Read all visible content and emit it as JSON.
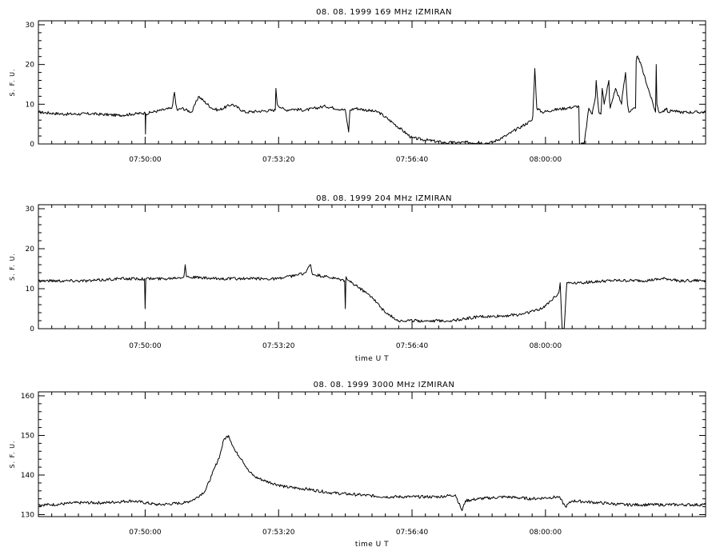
{
  "chart_data": [
    {
      "type": "line",
      "title": "08. 08. 1999    169 MHz    IZMIRAN",
      "ylabel": "S. F. U.",
      "xlabel": "",
      "x_range_seconds_of_day": [
        28040,
        29040
      ],
      "x_ticks": [
        28200,
        28400,
        28600,
        28800
      ],
      "x_tick_labels": [
        "07:50:00",
        "07:53:20",
        "07:56:40",
        "08:00:00"
      ],
      "ylim": [
        0,
        31
      ],
      "y_ticks": [
        0,
        10,
        20,
        30
      ],
      "y_tick_labels": [
        "0",
        "10",
        "20",
        "30"
      ],
      "series": [
        {
          "x": [
            28040,
            28080,
            28120,
            28160,
            28180,
            28200,
            28200.5,
            28201,
            28210,
            28240,
            28244,
            28246,
            28248,
            28255,
            28270,
            28280,
            28300,
            28310,
            28330,
            28350,
            28395,
            28396,
            28398,
            28405,
            28410,
            28420,
            28440,
            28470,
            28500,
            28505,
            28506,
            28507,
            28515,
            28550,
            28570,
            28600,
            28650,
            28700,
            28710,
            28720,
            28740,
            28760,
            28780,
            28781,
            28784,
            28787,
            28795,
            28810,
            28850,
            28851,
            28852,
            28858,
            28865,
            28870,
            28875,
            28876,
            28880,
            28883,
            28884,
            28885,
            28888,
            28895,
            28896,
            28897,
            28905,
            28914,
            28915,
            28920,
            28923,
            28925,
            28935,
            28936,
            28937,
            28940,
            28965,
            28966,
            28967,
            28970,
            28980,
            28981,
            28982,
            28983,
            28984,
            28990,
            29000,
            29040
          ],
          "y": [
            8,
            7.5,
            7.6,
            7.2,
            7.5,
            7.8,
            2.5,
            7.6,
            8,
            9,
            13,
            10,
            8.5,
            9,
            8,
            12,
            9,
            8.5,
            10,
            8,
            8.5,
            14,
            10,
            9,
            8.5,
            8.8,
            8.5,
            9.5,
            8.5,
            3,
            6,
            8.5,
            9,
            8,
            5.5,
            1.5,
            0.3,
            0.4,
            0.2,
            0.4,
            2,
            4,
            6,
            7,
            19,
            9,
            8,
            8.5,
            9.5,
            0,
            0,
            0,
            9,
            7.5,
            12,
            16,
            8,
            7.5,
            10,
            14,
            10,
            16,
            11,
            9,
            14,
            10,
            12,
            18,
            10,
            8,
            9,
            21,
            22,
            21.5,
            8,
            20,
            10,
            8,
            8.5,
            9,
            9,
            8,
            8,
            8.5,
            8,
            8
          ]
        }
      ]
    },
    {
      "type": "line",
      "title": "08. 08. 1999    204 MHz    IZMIRAN",
      "ylabel": "S. F. U.",
      "xlabel": "time  U T",
      "x_range_seconds_of_day": [
        28040,
        29040
      ],
      "x_ticks": [
        28200,
        28400,
        28600,
        28800
      ],
      "x_tick_labels": [
        "07:50:00",
        "07:53:20",
        "07:56:40",
        "08:00:00"
      ],
      "ylim": [
        0,
        31
      ],
      "y_ticks": [
        0,
        10,
        20,
        30
      ],
      "y_tick_labels": [
        "0",
        "10",
        "20",
        "30"
      ],
      "series": [
        {
          "x": [
            28040,
            28080,
            28120,
            28160,
            28199,
            28200,
            28201,
            28230,
            28258,
            28260,
            28262,
            28300,
            28350,
            28400,
            28430,
            28440,
            28448,
            28450,
            28452,
            28470,
            28499,
            28500,
            28501,
            28505,
            28540,
            28560,
            28580,
            28620,
            28660,
            28700,
            28720,
            28760,
            28795,
            28820,
            28822,
            28825,
            28828,
            28832,
            28850,
            28900,
            28950,
            28980,
            29000,
            29040
          ],
          "y": [
            12,
            12,
            12,
            12.5,
            12.5,
            5,
            12.5,
            12.5,
            13,
            16,
            13,
            12.5,
            12.5,
            12.5,
            13.5,
            14,
            16,
            14,
            13.5,
            13,
            12,
            5,
            13,
            12,
            8,
            4,
            2,
            2,
            2,
            3,
            3,
            3.5,
            5,
            9,
            11.5,
            0,
            0,
            11.5,
            11.5,
            12,
            12,
            12.5,
            12,
            12
          ]
        }
      ]
    },
    {
      "type": "line",
      "title": "08. 08. 1999    3000 MHz    IZMIRAN",
      "ylabel": "S. F. U.",
      "xlabel": "time  U T",
      "x_range_seconds_of_day": [
        28040,
        29040
      ],
      "x_ticks": [
        28200,
        28400,
        28600,
        28800
      ],
      "x_tick_labels": [
        "07:50:00",
        "07:53:20",
        "07:56:40",
        "08:00:00"
      ],
      "ylim": [
        129.5,
        161
      ],
      "y_ticks": [
        130,
        140,
        150,
        160
      ],
      "y_tick_labels": [
        "130",
        "140",
        "150",
        "160"
      ],
      "series": [
        {
          "x": [
            28040,
            28060,
            28100,
            28140,
            28180,
            28220,
            28260,
            28275,
            28290,
            28300,
            28312,
            28318,
            28325,
            28335,
            28345,
            28355,
            28365,
            28380,
            28410,
            28440,
            28480,
            28520,
            28560,
            28600,
            28640,
            28665,
            28675,
            28680,
            28700,
            28740,
            28780,
            28820,
            28830,
            28840,
            28880,
            28920,
            28940,
            28980,
            29000,
            29040
          ],
          "y": [
            132.5,
            132.5,
            133,
            133,
            133.5,
            132.5,
            133,
            134,
            136,
            140,
            145,
            149,
            150,
            146,
            144,
            141,
            139.5,
            138.5,
            137,
            136.5,
            135.5,
            135,
            134.5,
            134.5,
            134.5,
            135,
            131,
            133.5,
            134,
            134.5,
            134,
            134.5,
            132,
            133.5,
            133,
            132.5,
            132.5,
            132.5,
            132.5,
            132.5
          ]
        }
      ]
    }
  ]
}
